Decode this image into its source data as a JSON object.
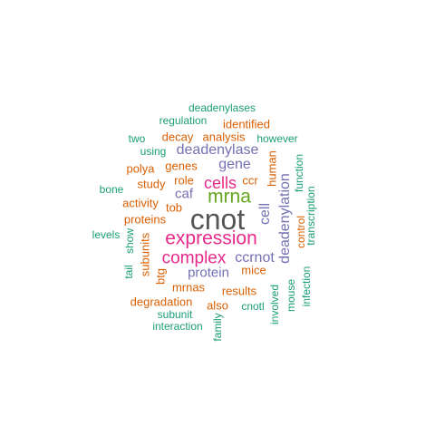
{
  "palette": {
    "teal": "#1b9e77",
    "orange": "#d95f02",
    "purple": "#7570b3",
    "magenta": "#e7298a",
    "green": "#66a61e",
    "gray": "#555555"
  },
  "words": [
    {
      "text": "cnot",
      "color": "#555555"
    },
    {
      "text": "expression",
      "color": "#e7298a"
    },
    {
      "text": "mrna",
      "color": "#66a61e"
    },
    {
      "text": "complex",
      "color": "#e7298a"
    },
    {
      "text": "cells",
      "color": "#e7298a"
    },
    {
      "text": "deadenylase",
      "color": "#7570b3"
    },
    {
      "text": "gene",
      "color": "#7570b3"
    },
    {
      "text": "deadenylation",
      "color": "#7570b3"
    },
    {
      "text": "ccrnot",
      "color": "#7570b3"
    },
    {
      "text": "protein",
      "color": "#7570b3"
    },
    {
      "text": "caf",
      "color": "#7570b3"
    },
    {
      "text": "cell",
      "color": "#7570b3"
    },
    {
      "text": "human",
      "color": "#d95f02"
    },
    {
      "text": "genes",
      "color": "#d95f02"
    },
    {
      "text": "role",
      "color": "#d95f02"
    },
    {
      "text": "ccr",
      "color": "#d95f02"
    },
    {
      "text": "tob",
      "color": "#d95f02"
    },
    {
      "text": "proteins",
      "color": "#d95f02"
    },
    {
      "text": "activity",
      "color": "#d95f02"
    },
    {
      "text": "study",
      "color": "#d95f02"
    },
    {
      "text": "polya",
      "color": "#d95f02"
    },
    {
      "text": "decay",
      "color": "#d95f02"
    },
    {
      "text": "analysis",
      "color": "#d95f02"
    },
    {
      "text": "identified",
      "color": "#d95f02"
    },
    {
      "text": "subunits",
      "color": "#d95f02"
    },
    {
      "text": "btg",
      "color": "#d95f02"
    },
    {
      "text": "mrnas",
      "color": "#d95f02"
    },
    {
      "text": "mice",
      "color": "#d95f02"
    },
    {
      "text": "results",
      "color": "#d95f02"
    },
    {
      "text": "degradation",
      "color": "#d95f02"
    },
    {
      "text": "also",
      "color": "#d95f02"
    },
    {
      "text": "control",
      "color": "#d95f02"
    },
    {
      "text": "deadenylases",
      "color": "#1b9e77"
    },
    {
      "text": "regulation",
      "color": "#1b9e77"
    },
    {
      "text": "two",
      "color": "#1b9e77"
    },
    {
      "text": "using",
      "color": "#1b9e77"
    },
    {
      "text": "however",
      "color": "#1b9e77"
    },
    {
      "text": "function",
      "color": "#1b9e77"
    },
    {
      "text": "bone",
      "color": "#1b9e77"
    },
    {
      "text": "transcription",
      "color": "#1b9e77"
    },
    {
      "text": "levels",
      "color": "#1b9e77"
    },
    {
      "text": "show",
      "color": "#1b9e77"
    },
    {
      "text": "tail",
      "color": "#1b9e77"
    },
    {
      "text": "involved",
      "color": "#1b9e77"
    },
    {
      "text": "mouse",
      "color": "#1b9e77"
    },
    {
      "text": "infection",
      "color": "#1b9e77"
    },
    {
      "text": "cnotl",
      "color": "#1b9e77"
    },
    {
      "text": "subunit",
      "color": "#1b9e77"
    },
    {
      "text": "interaction",
      "color": "#1b9e77"
    },
    {
      "text": "family",
      "color": "#1b9e77"
    }
  ]
}
